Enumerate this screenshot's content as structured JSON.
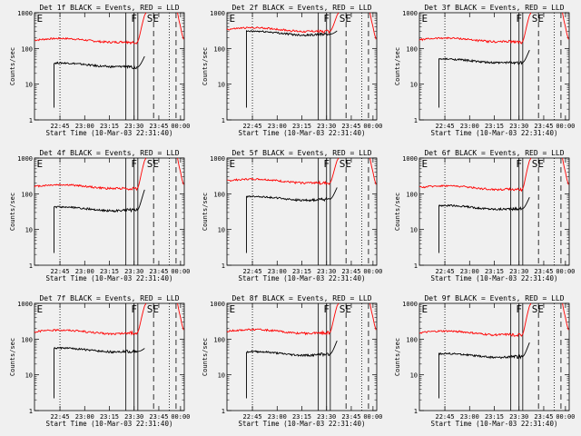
{
  "figure": {
    "xlabel": "Start Time (10-Mar-03 22:31:40)",
    "ylabel": "Counts/sec"
  },
  "chart_data": [
    {
      "type": "line",
      "title": "Det 1f BLACK = Events, RED = LLD",
      "xlabel": "Start Time (10-Mar-03 22:31:40)",
      "ylabel": "Counts/sec",
      "x_tick_labels": [
        "22:45",
        "23:00",
        "23:15",
        "23:30",
        "23:45",
        "00:00"
      ],
      "y_tick_labels": [
        "1",
        "10",
        "100",
        "1000"
      ],
      "yscale": "log",
      "ylim": [
        1,
        1000
      ],
      "annotations": [
        "E",
        "F",
        "SE"
      ],
      "series": [
        {
          "name": "LLD",
          "color": "#ff0000",
          "level": 170,
          "end_level": 850,
          "dip": 150
        },
        {
          "name": "Events",
          "color": "#000000",
          "level": 35,
          "end_level": 60,
          "dip": 30
        }
      ]
    },
    {
      "type": "line",
      "title": "Det 2f BLACK = Events, RED = LLD",
      "xlabel": "Start Time (10-Mar-03 22:31:40)",
      "ylabel": "Counts/sec",
      "x_tick_labels": [
        "22:45",
        "23:00",
        "23:15",
        "23:30",
        "23:45",
        "00:00"
      ],
      "y_tick_labels": [
        "1",
        "10",
        "100",
        "1000"
      ],
      "yscale": "log",
      "ylim": [
        1,
        1000
      ],
      "annotations": [
        "E",
        "F",
        "SE"
      ],
      "series": [
        {
          "name": "LLD",
          "color": "#ff0000",
          "level": 340,
          "end_level": 850,
          "dip": 300
        },
        {
          "name": "Events",
          "color": "#000000",
          "level": 270,
          "end_level": 310,
          "dip": 250
        }
      ]
    },
    {
      "type": "line",
      "title": "Det 3f BLACK = Events, RED = LLD",
      "xlabel": "Start Time (10-Mar-03 22:31:40)",
      "ylabel": "Counts/sec",
      "x_tick_labels": [
        "22:45",
        "23:00",
        "23:15",
        "23:30",
        "23:45",
        "00:00"
      ],
      "y_tick_labels": [
        "1",
        "10",
        "100",
        "1000"
      ],
      "yscale": "log",
      "ylim": [
        1,
        1000
      ],
      "annotations": [
        "E",
        "F",
        "SE"
      ],
      "series": [
        {
          "name": "LLD",
          "color": "#ff0000",
          "level": 175,
          "end_level": 850,
          "dip": 150
        },
        {
          "name": "Events",
          "color": "#000000",
          "level": 45,
          "end_level": 90,
          "dip": 40
        }
      ]
    },
    {
      "type": "line",
      "title": "Det 4f BLACK = Events, RED = LLD",
      "xlabel": "Start Time (10-Mar-03 22:31:40)",
      "ylabel": "Counts/sec",
      "x_tick_labels": [
        "22:45",
        "23:00",
        "23:15",
        "23:30",
        "23:45",
        "00:00"
      ],
      "y_tick_labels": [
        "1",
        "10",
        "100",
        "1000"
      ],
      "yscale": "log",
      "ylim": [
        1,
        1000
      ],
      "annotations": [
        "E",
        "F",
        "SE"
      ],
      "series": [
        {
          "name": "LLD",
          "color": "#ff0000",
          "level": 160,
          "end_level": 850,
          "dip": 140
        },
        {
          "name": "Events",
          "color": "#000000",
          "level": 38,
          "end_level": 130,
          "dip": 35
        }
      ]
    },
    {
      "type": "line",
      "title": "Det 5f BLACK = Events, RED = LLD",
      "xlabel": "Start Time (10-Mar-03 22:31:40)",
      "ylabel": "Counts/sec",
      "x_tick_labels": [
        "22:45",
        "23:00",
        "23:15",
        "23:30",
        "23:45",
        "00:00"
      ],
      "y_tick_labels": [
        "1",
        "10",
        "100",
        "1000"
      ],
      "yscale": "log",
      "ylim": [
        1,
        1000
      ],
      "annotations": [
        "E",
        "F",
        "SE"
      ],
      "series": [
        {
          "name": "LLD",
          "color": "#ff0000",
          "level": 230,
          "end_level": 850,
          "dip": 200
        },
        {
          "name": "Events",
          "color": "#000000",
          "level": 75,
          "end_level": 150,
          "dip": 70
        }
      ]
    },
    {
      "type": "line",
      "title": "Det 6f BLACK = Events, RED = LLD",
      "xlabel": "Start Time (10-Mar-03 22:31:40)",
      "ylabel": "Counts/sec",
      "x_tick_labels": [
        "22:45",
        "23:00",
        "23:15",
        "23:30",
        "23:45",
        "00:00"
      ],
      "y_tick_labels": [
        "1",
        "10",
        "100",
        "1000"
      ],
      "yscale": "log",
      "ylim": [
        1,
        1000
      ],
      "annotations": [
        "E",
        "F",
        "SE"
      ],
      "series": [
        {
          "name": "LLD",
          "color": "#ff0000",
          "level": 150,
          "end_level": 850,
          "dip": 130
        },
        {
          "name": "Events",
          "color": "#000000",
          "level": 42,
          "end_level": 80,
          "dip": 38
        }
      ]
    },
    {
      "type": "line",
      "title": "Det 7f BLACK = Events, RED = LLD",
      "xlabel": "Start Time (10-Mar-03 22:31:40)",
      "ylabel": "Counts/sec",
      "x_tick_labels": [
        "22:45",
        "23:00",
        "23:15",
        "23:30",
        "23:45",
        "00:00"
      ],
      "y_tick_labels": [
        "1",
        "10",
        "100",
        "1000"
      ],
      "yscale": "log",
      "ylim": [
        1,
        1000
      ],
      "annotations": [
        "E",
        "F",
        "SE"
      ],
      "series": [
        {
          "name": "LLD",
          "color": "#ff0000",
          "level": 160,
          "end_level": 850,
          "dip": 150
        },
        {
          "name": "Events",
          "color": "#000000",
          "level": 50,
          "end_level": 55,
          "dip": 45
        }
      ]
    },
    {
      "type": "line",
      "title": "Det 8f BLACK = Events, RED = LLD",
      "xlabel": "Start Time (10-Mar-03 22:31:40)",
      "ylabel": "Counts/sec",
      "x_tick_labels": [
        "22:45",
        "23:00",
        "23:15",
        "23:30",
        "23:45",
        "00:00"
      ],
      "y_tick_labels": [
        "1",
        "10",
        "100",
        "1000"
      ],
      "yscale": "log",
      "ylim": [
        1,
        1000
      ],
      "annotations": [
        "E",
        "F",
        "SE"
      ],
      "series": [
        {
          "name": "LLD",
          "color": "#ff0000",
          "level": 165,
          "end_level": 850,
          "dip": 150
        },
        {
          "name": "Events",
          "color": "#000000",
          "level": 40,
          "end_level": 90,
          "dip": 38
        }
      ]
    },
    {
      "type": "line",
      "title": "Det 9f BLACK = Events, RED = LLD",
      "xlabel": "Start Time (10-Mar-03 22:31:40)",
      "ylabel": "Counts/sec",
      "x_tick_labels": [
        "22:45",
        "23:00",
        "23:15",
        "23:30",
        "23:45",
        "00:00"
      ],
      "y_tick_labels": [
        "1",
        "10",
        "100",
        "1000"
      ],
      "yscale": "log",
      "ylim": [
        1,
        1000
      ],
      "annotations": [
        "E",
        "F",
        "SE"
      ],
      "series": [
        {
          "name": "LLD",
          "color": "#ff0000",
          "level": 150,
          "end_level": 850,
          "dip": 130
        },
        {
          "name": "Events",
          "color": "#000000",
          "level": 35,
          "end_level": 80,
          "dip": 32
        }
      ]
    }
  ]
}
